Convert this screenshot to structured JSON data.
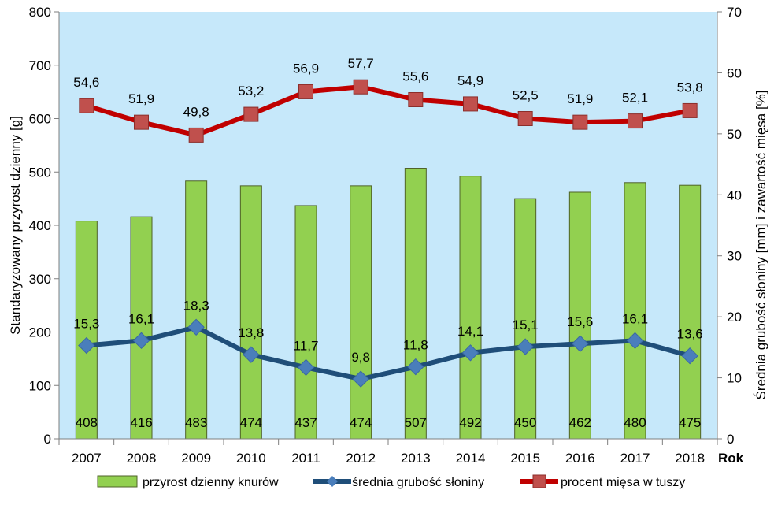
{
  "chart_data": {
    "type": "bar",
    "categories": [
      "2007",
      "2008",
      "2009",
      "2010",
      "2011",
      "2012",
      "2013",
      "2014",
      "2015",
      "2016",
      "2017",
      "2018"
    ],
    "xlabel": "Rok",
    "ylabel": "Standaryzowany przyrost dzienny [g]",
    "y2label": "Średnia grubość słoniny [mm] i zawartość mięsa [%]",
    "ylim": [
      0,
      800
    ],
    "y2lim": [
      0,
      70
    ],
    "yticks": [
      "0",
      "100",
      "200",
      "300",
      "400",
      "500",
      "600",
      "700",
      "800"
    ],
    "y2ticks": [
      "0",
      "10",
      "20",
      "30",
      "40",
      "50",
      "60",
      "70"
    ],
    "grid": false,
    "legend_position": "bottom",
    "series": [
      {
        "name": "przyrost dzienny knurów",
        "type": "bar",
        "axis": "left",
        "color": "#92d050",
        "values": [
          408,
          416,
          483,
          474,
          437,
          474,
          507,
          492,
          450,
          462,
          480,
          475
        ],
        "labels": [
          "408",
          "416",
          "483",
          "474",
          "437",
          "474",
          "507",
          "492",
          "450",
          "462",
          "480",
          "475"
        ]
      },
      {
        "name": "średnia grubość słoniny",
        "type": "line",
        "axis": "right",
        "color": "#1f4e79",
        "marker": "diamond",
        "values": [
          15.3,
          16.1,
          18.3,
          13.8,
          11.7,
          9.8,
          11.8,
          14.1,
          15.1,
          15.6,
          16.1,
          13.6
        ],
        "labels": [
          "15,3",
          "16,1",
          "18,3",
          "13,8",
          "11,7",
          "9,8",
          "11,8",
          "14,1",
          "15,1",
          "15,6",
          "16,1",
          "13,6"
        ]
      },
      {
        "name": "procent mięsa w tuszy",
        "type": "line",
        "axis": "right",
        "color": "#c00000",
        "marker": "square",
        "values": [
          54.6,
          51.9,
          49.8,
          53.2,
          56.9,
          57.7,
          55.6,
          54.9,
          52.5,
          51.9,
          52.1,
          53.8
        ],
        "labels": [
          "54,6",
          "51,9",
          "49,8",
          "53,2",
          "56,9",
          "57,7",
          "55,6",
          "54,9",
          "52,5",
          "51,9",
          "52,1",
          "53,8"
        ]
      }
    ],
    "colors": {
      "plot_background": "#c6e8fa",
      "bar_fill": "#92d050",
      "bar_stroke": "#4f6228",
      "fat_line": "#1f4e79",
      "fat_marker": "#4a7ebb",
      "meat_line": "#c00000",
      "meat_marker": "#c0504d"
    }
  }
}
